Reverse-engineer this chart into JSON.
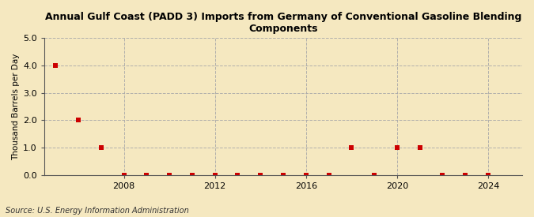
{
  "title": "Annual Gulf Coast (PADD 3) Imports from Germany of Conventional Gasoline Blending\nComponents",
  "ylabel": "Thousand Barrels per Day",
  "source": "Source: U.S. Energy Information Administration",
  "background_color": "#f5e8c0",
  "plot_bg_color": "#f5e8c0",
  "marker_color": "#cc0000",
  "marker_size": 4,
  "xlim": [
    2004.5,
    2025.5
  ],
  "ylim": [
    0,
    5.0
  ],
  "yticks": [
    0.0,
    1.0,
    2.0,
    3.0,
    4.0,
    5.0
  ],
  "xticks": [
    2008,
    2012,
    2016,
    2020,
    2024
  ],
  "years": [
    2005,
    2006,
    2007,
    2008,
    2009,
    2010,
    2011,
    2012,
    2013,
    2014,
    2015,
    2016,
    2017,
    2018,
    2019,
    2020,
    2021,
    2022,
    2023,
    2024
  ],
  "values": [
    4.0,
    2.0,
    1.0,
    0.0,
    0.0,
    0.0,
    0.0,
    0.0,
    0.0,
    0.0,
    0.0,
    0.0,
    0.0,
    1.0,
    0.0,
    1.0,
    1.0,
    0.0,
    0.0,
    0.0
  ]
}
